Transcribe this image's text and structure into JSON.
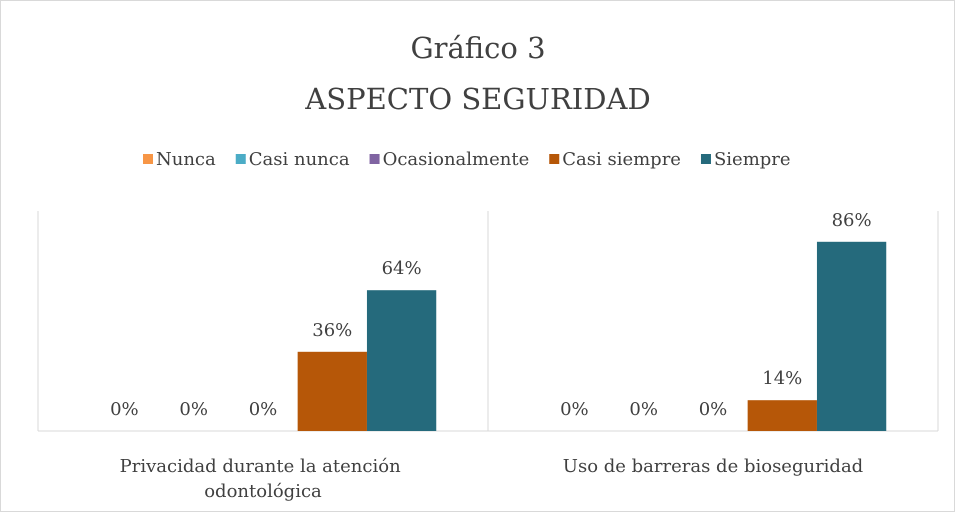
{
  "chart_data": {
    "type": "bar",
    "title": "Gráfico 3",
    "subtitle": "ASPECTO SEGURIDAD",
    "categories": [
      "Privacidad durante la atención odontológica",
      "Uso de barreras de bioseguridad"
    ],
    "series": [
      {
        "name": "Nunca",
        "color": "#f79646",
        "values": [
          0,
          0
        ],
        "value_labels": [
          "0%",
          "0%"
        ]
      },
      {
        "name": "Casi nunca",
        "color": "#4bacc6",
        "values": [
          0,
          0
        ],
        "value_labels": [
          "0%",
          "0%"
        ]
      },
      {
        "name": "Ocasionalmente",
        "color": "#8064a2",
        "values": [
          0,
          0
        ],
        "value_labels": [
          "0%",
          "0%"
        ]
      },
      {
        "name": "Casi siempre",
        "color": "#b65708",
        "values": [
          36,
          14
        ],
        "value_labels": [
          "36%",
          "14%"
        ]
      },
      {
        "name": "Siempre",
        "color": "#256a7c",
        "values": [
          64,
          86
        ],
        "value_labels": [
          "64%",
          "86%"
        ]
      }
    ],
    "ylim": [
      0,
      100
    ],
    "legend": "top"
  }
}
